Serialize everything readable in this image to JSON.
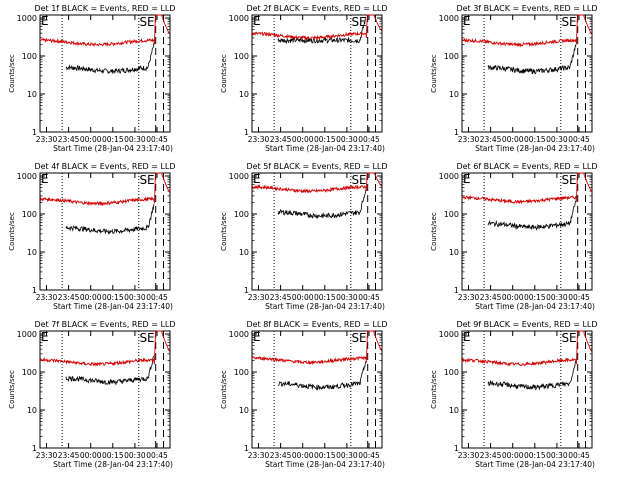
{
  "chart_data": [
    {
      "type": "line",
      "title": "Det 1f BLACK = Events, RED = LLD",
      "ylabel": "Counts/sec",
      "xlabel": "Start Time (28-Jan-04 23:17:40)",
      "xticks": [
        "23:30",
        "23:45",
        "00:00",
        "00:15",
        "00:30",
        "00:45"
      ],
      "yticks": [
        "1",
        "10",
        "100",
        "1000"
      ],
      "ylim": [
        1,
        1200
      ],
      "yscale": "log",
      "annotations": [
        "E",
        "SE"
      ],
      "series": [
        {
          "color": "black",
          "level": 40,
          "start": 60
        },
        {
          "color": "red",
          "level": 200,
          "start": 270
        }
      ]
    },
    {
      "type": "line",
      "title": "Det 2f BLACK = Events, RED = LLD",
      "ylabel": "Counts/sec",
      "xlabel": "Start Time (28-Jan-04 23:17:40)",
      "xticks": [
        "23:30",
        "23:45",
        "00:00",
        "00:15",
        "00:30",
        "00:45"
      ],
      "yticks": [
        "1",
        "10",
        "100",
        "1000"
      ],
      "ylim": [
        1,
        1200
      ],
      "yscale": "log",
      "annotations": [
        "E",
        "SE"
      ],
      "series": [
        {
          "color": "black",
          "level": 260,
          "start": 350
        },
        {
          "color": "red",
          "level": 300,
          "start": 420
        }
      ]
    },
    {
      "type": "line",
      "title": "Det 3f BLACK = Events, RED = LLD",
      "ylabel": "Counts/sec",
      "xlabel": "Start Time (28-Jan-04 23:17:40)",
      "xticks": [
        "23:30",
        "23:45",
        "00:00",
        "00:15",
        "00:30",
        "00:45"
      ],
      "yticks": [
        "1",
        "10",
        "100",
        "1000"
      ],
      "ylim": [
        1,
        1200
      ],
      "yscale": "log",
      "annotations": [
        "E",
        "SE"
      ],
      "series": [
        {
          "color": "black",
          "level": 40,
          "start": 60
        },
        {
          "color": "red",
          "level": 200,
          "start": 280
        }
      ]
    },
    {
      "type": "line",
      "title": "Det 4f BLACK = Events, RED = LLD",
      "ylabel": "Counts/sec",
      "xlabel": "Start Time (28-Jan-04 23:17:40)",
      "xticks": [
        "23:30",
        "23:45",
        "00:00",
        "00:15",
        "00:30",
        "00:45"
      ],
      "yticks": [
        "1",
        "10",
        "100",
        "1000"
      ],
      "ylim": [
        1,
        1200
      ],
      "yscale": "log",
      "annotations": [
        "E",
        "SE"
      ],
      "series": [
        {
          "color": "black",
          "level": 35,
          "start": 50
        },
        {
          "color": "red",
          "level": 190,
          "start": 290
        }
      ]
    },
    {
      "type": "line",
      "title": "Det 5f BLACK = Events, RED = LLD",
      "ylabel": "Counts/sec",
      "xlabel": "Start Time (28-Jan-04 23:17:40)",
      "xticks": [
        "23:30",
        "23:45",
        "00:00",
        "00:15",
        "00:30",
        "00:45"
      ],
      "yticks": [
        "1",
        "10",
        "100",
        "1000"
      ],
      "ylim": [
        1,
        1200
      ],
      "yscale": "log",
      "annotations": [
        "E",
        "SE"
      ],
      "series": [
        {
          "color": "black",
          "level": 90,
          "start": 110
        },
        {
          "color": "red",
          "level": 400,
          "start": 450
        }
      ]
    },
    {
      "type": "line",
      "title": "Det 6f BLACK = Events, RED = LLD",
      "ylabel": "Counts/sec",
      "xlabel": "Start Time (28-Jan-04 23:17:40)",
      "xticks": [
        "23:30",
        "23:45",
        "00:00",
        "00:15",
        "00:30",
        "00:45"
      ],
      "yticks": [
        "1",
        "10",
        "100",
        "1000"
      ],
      "ylim": [
        1,
        1200
      ],
      "yscale": "log",
      "annotations": [
        "E",
        "SE"
      ],
      "series": [
        {
          "color": "black",
          "level": 45,
          "start": 60
        },
        {
          "color": "red",
          "level": 210,
          "start": 320
        }
      ]
    },
    {
      "type": "line",
      "title": "Det 7f BLACK = Events, RED = LLD",
      "ylabel": "Counts/sec",
      "xlabel": "Start Time (28-Jan-04 23:17:40)",
      "xticks": [
        "23:30",
        "23:45",
        "00:00",
        "00:15",
        "00:30",
        "00:45"
      ],
      "yticks": [
        "1",
        "10",
        "100",
        "1000"
      ],
      "ylim": [
        1,
        1200
      ],
      "yscale": "log",
      "annotations": [
        "E",
        "SE"
      ],
      "series": [
        {
          "color": "black",
          "level": 55,
          "start": 60
        },
        {
          "color": "red",
          "level": 160,
          "start": 190
        }
      ]
    },
    {
      "type": "line",
      "title": "Det 8f BLACK = Events, RED = LLD",
      "ylabel": "Counts/sec",
      "xlabel": "Start Time (28-Jan-04 23:17:40)",
      "xticks": [
        "23:30",
        "23:45",
        "00:00",
        "00:15",
        "00:30",
        "00:45"
      ],
      "yticks": [
        "1",
        "10",
        "100",
        "1000"
      ],
      "ylim": [
        1,
        1200
      ],
      "yscale": "log",
      "annotations": [
        "E",
        "SE"
      ],
      "series": [
        {
          "color": "black",
          "level": 40,
          "start": 50
        },
        {
          "color": "red",
          "level": 180,
          "start": 230
        }
      ]
    },
    {
      "type": "line",
      "title": "Det 9f BLACK = Events, RED = LLD",
      "ylabel": "Counts/sec",
      "xlabel": "Start Time (28-Jan-04 23:17:40)",
      "xticks": [
        "23:30",
        "23:45",
        "00:00",
        "00:15",
        "00:30",
        "00:45"
      ],
      "yticks": [
        "1",
        "10",
        "100",
        "1000"
      ],
      "ylim": [
        1,
        1200
      ],
      "yscale": "log",
      "annotations": [
        "E",
        "SE"
      ],
      "series": [
        {
          "color": "black",
          "level": 40,
          "start": 50
        },
        {
          "color": "red",
          "level": 160,
          "start": 200
        }
      ]
    }
  ]
}
